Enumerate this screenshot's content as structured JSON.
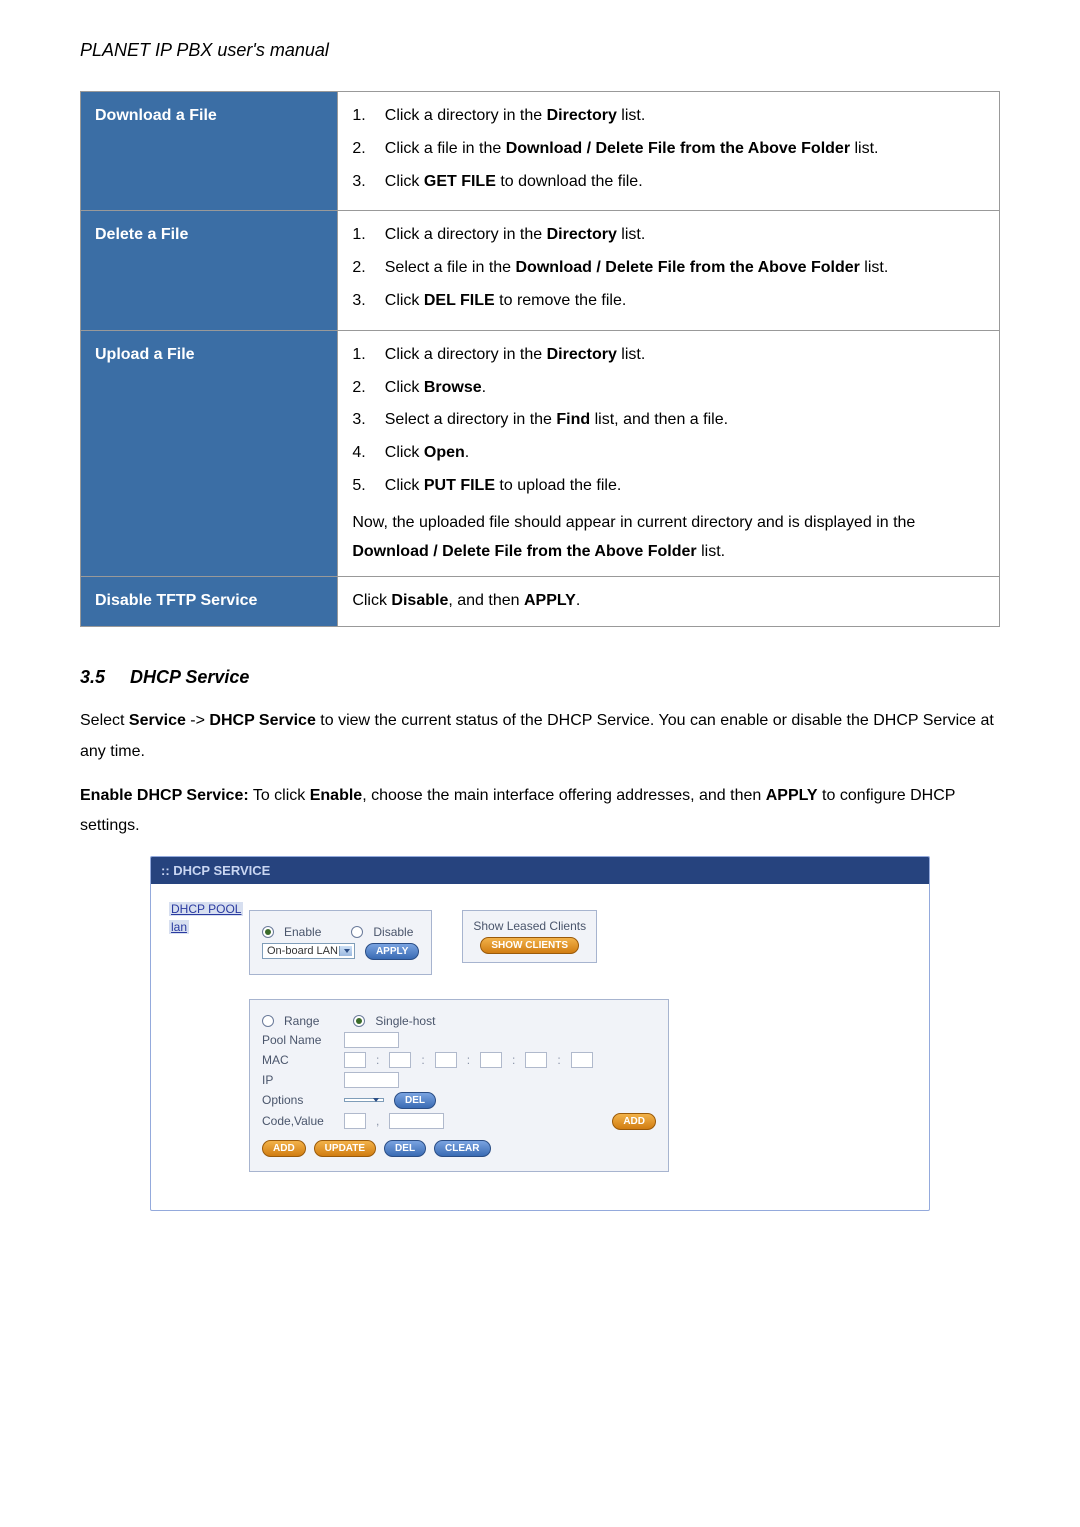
{
  "doc_title": "PLANET IP PBX user's manual",
  "table": {
    "rows": [
      {
        "label": "Download a File",
        "steps": [
          {
            "n": "1.",
            "parts": [
              "Click a directory in the ",
              {
                "b": "Directory"
              },
              " list."
            ]
          },
          {
            "n": "2.",
            "parts": [
              "Click a file in the ",
              {
                "b": "Download / Delete File from the Above Folder"
              },
              " list."
            ]
          },
          {
            "n": "3.",
            "parts": [
              "Click ",
              {
                "b": "GET FILE"
              },
              " to download the file."
            ]
          }
        ]
      },
      {
        "label": "Delete a File",
        "steps": [
          {
            "n": "1.",
            "parts": [
              "Click a directory in the ",
              {
                "b": "Directory"
              },
              " list."
            ]
          },
          {
            "n": "2.",
            "parts": [
              "Select a file in the ",
              {
                "b": "Download / Delete File from the Above Folder"
              },
              " list."
            ]
          },
          {
            "n": "3.",
            "parts": [
              "Click ",
              {
                "b": "DEL FILE"
              },
              " to remove the file."
            ]
          }
        ]
      },
      {
        "label": "Upload a File",
        "steps": [
          {
            "n": "1.",
            "parts": [
              "Click a directory in the ",
              {
                "b": "Directory"
              },
              " list."
            ]
          },
          {
            "n": "2.",
            "parts": [
              "Click ",
              {
                "b": "Browse"
              },
              "."
            ]
          },
          {
            "n": "3.",
            "parts": [
              "Select a directory in the ",
              {
                "b": "Find"
              },
              " list, and then a file."
            ]
          },
          {
            "n": "4.",
            "parts": [
              "Click ",
              {
                "b": "Open"
              },
              "."
            ]
          },
          {
            "n": "5.",
            "parts": [
              "Click ",
              {
                "b": "PUT FILE"
              },
              " to upload the file."
            ]
          }
        ],
        "trailer": [
          "Now, the uploaded file should appear in current directory and is displayed in the ",
          {
            "b": "Download / Delete File from the Above Folder"
          },
          " list."
        ]
      },
      {
        "label": "Disable TFTP Service",
        "plain": [
          "Click ",
          {
            "b": "Disable"
          },
          ", and then ",
          {
            "b": "APPLY"
          },
          "."
        ]
      }
    ]
  },
  "section": {
    "num": "3.5",
    "name": "DHCP Service"
  },
  "para1": [
    "Select ",
    {
      "b": "Service"
    },
    " -> ",
    {
      "b": "DHCP Service"
    },
    " to view the current status of the DHCP Service. You can enable or disable the DHCP Service at any time."
  ],
  "para2": [
    {
      "b": "Enable DHCP Service:"
    },
    " To click ",
    {
      "b": "Enable"
    },
    ", choose the main interface offering addresses, and then ",
    {
      "b": "APPLY"
    },
    " to configure DHCP settings."
  ],
  "dhcp": {
    "panel_title": ":: DHCP SERVICE",
    "pool_label": "DHCP POOL",
    "lan_link": "lan",
    "enable": "Enable",
    "disable": "Disable",
    "onboard": "On-board LAN",
    "apply": "APPLY",
    "leased_title": "Show Leased Clients",
    "show_clients": "SHOW CLIENTS",
    "range": "Range",
    "single_host": "Single-host",
    "pool_name": "Pool Name",
    "mac": "MAC",
    "ip": "IP",
    "options": "Options",
    "code_value": "Code,Value",
    "del": "DEL",
    "add": "ADD",
    "update": "UPDATE",
    "clear": "CLEAR",
    "colors": {
      "panel_border": "#94aadc",
      "header_bg": "#26437e",
      "header_fg": "#c9d6f2",
      "box_bg": "#f1f3f8",
      "box_border": "#a7b4cf",
      "btn_blue_top": "#7aa3e0",
      "btn_blue_bot": "#3a6bb3",
      "btn_orange_top": "#f2b24a",
      "btn_orange_bot": "#d17d12",
      "link": "#2a3aa0"
    }
  }
}
